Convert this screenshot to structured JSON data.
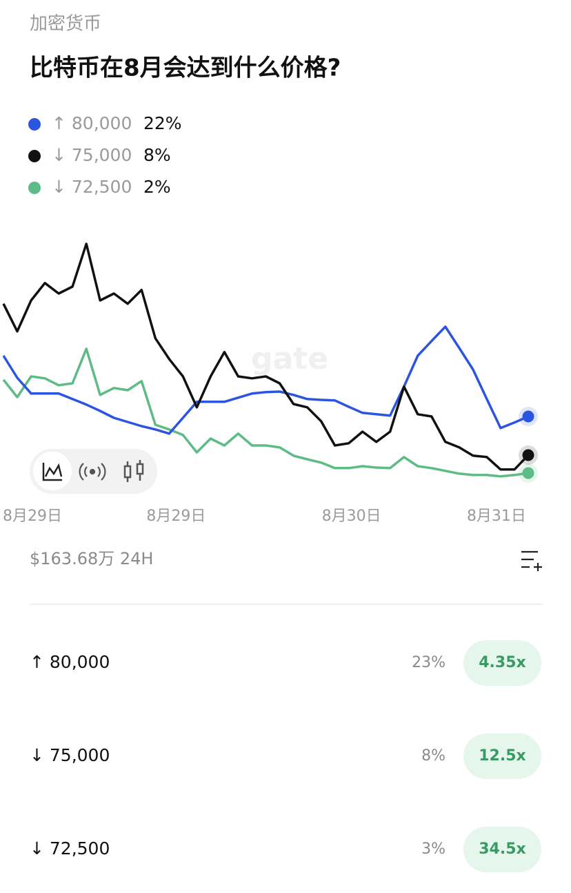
{
  "header": {
    "category": "加密货币",
    "title": "比特币在8月会达到什么价格?"
  },
  "chart_data": {
    "type": "line",
    "watermark": "gate",
    "xlim": [
      0,
      38
    ],
    "ylim": [
      -2,
      88
    ],
    "xticks": [
      {
        "value": 2.1,
        "label": "8月29日"
      },
      {
        "value": 12.5,
        "label": "8月29日"
      },
      {
        "value": 25.2,
        "label": "8月30日"
      },
      {
        "value": 35.7,
        "label": "8月31日"
      }
    ],
    "series": [
      {
        "name": "↑ 80,000",
        "probability": "22%",
        "color": "#2b55e0",
        "values": [
          44,
          36,
          30.3,
          30.3,
          30.3,
          28.3,
          26.3,
          24,
          21.5,
          20,
          18.5,
          17.3,
          15.8,
          21.5,
          27.3,
          27.3,
          27.3,
          28.8,
          30.3,
          30.8,
          31,
          29.8,
          28.3,
          28,
          27.8,
          25.5,
          23.3,
          22.8,
          22.3,
          32.8,
          44,
          49.3,
          54.5,
          46.8,
          39,
          28.3,
          17.8,
          19.8,
          22
        ]
      },
      {
        "name": "↓ 75,000",
        "probability": "8%",
        "color": "#111111",
        "values": [
          62.8,
          52.8,
          64,
          70.3,
          66.5,
          69,
          84.5,
          64,
          66.5,
          62.8,
          67.8,
          50.3,
          42.8,
          36.5,
          25.3,
          36.5,
          45.3,
          36.5,
          35.8,
          36.5,
          34,
          26.5,
          25.3,
          20.3,
          11.5,
          12.3,
          16.5,
          12.8,
          16.5,
          32.8,
          22.8,
          22,
          12.8,
          10.8,
          7.8,
          7.3,
          2.8,
          2.8,
          8
        ]
      },
      {
        "name": "↓ 72,500",
        "probability": "2%",
        "color": "#5dbb85",
        "values": [
          35.3,
          29,
          36.5,
          35.8,
          33.3,
          34,
          46.5,
          29.8,
          32.3,
          31.5,
          34.8,
          19,
          17.3,
          15.3,
          9,
          14,
          11.5,
          15.8,
          11.5,
          11.5,
          10.8,
          7.8,
          6.5,
          5.3,
          3.3,
          3.3,
          4,
          3.5,
          3.3,
          7.3,
          4,
          3.3,
          2.3,
          1.3,
          0.8,
          0.8,
          0.3,
          0.8,
          1.5
        ]
      }
    ]
  },
  "volume": "$163.68万 24H",
  "outcomes": [
    {
      "label": "↑ 80,000",
      "percent": "23%",
      "payout": "4.35x"
    },
    {
      "label": "↓ 75,000",
      "percent": "8%",
      "payout": "12.5x"
    },
    {
      "label": "↓ 72,500",
      "percent": "3%",
      "payout": "34.5x"
    }
  ]
}
